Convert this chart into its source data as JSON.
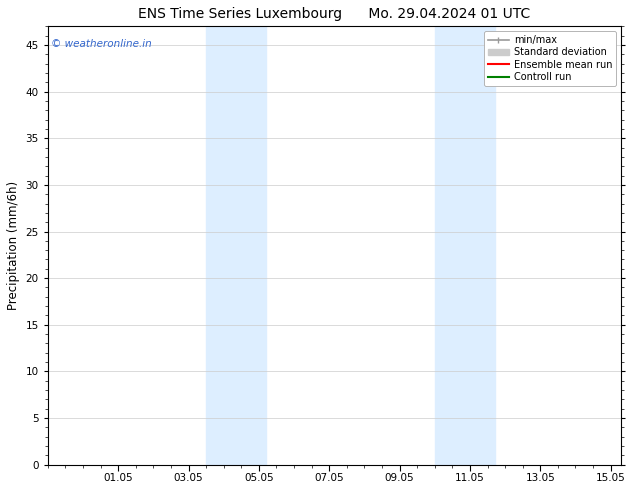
{
  "title_left": "ENS Time Series Luxembourg",
  "title_right": "Mo. 29.04.2024 01 UTC",
  "ylabel": "Precipitation (mm/6h)",
  "ylim": [
    0,
    47
  ],
  "yticks": [
    0,
    5,
    10,
    15,
    20,
    25,
    30,
    35,
    40,
    45
  ],
  "xtick_labels": [
    "01.05",
    "03.05",
    "05.05",
    "07.05",
    "09.05",
    "11.05",
    "13.05",
    "15.05"
  ],
  "xtick_positions": [
    2,
    4,
    6,
    8,
    10,
    12,
    14,
    16
  ],
  "x_min": 0,
  "x_max": 16.3,
  "shaded_bands": [
    {
      "x_start": 4.5,
      "x_end": 6.2
    },
    {
      "x_start": 11.0,
      "x_end": 12.7
    }
  ],
  "shaded_color": "#ddeeff",
  "watermark_text": "© weatheronline.in",
  "watermark_color": "#3366cc",
  "legend_labels": [
    "min/max",
    "Standard deviation",
    "Ensemble mean run",
    "Controll run"
  ],
  "legend_colors": [
    "#999999",
    "#cccccc",
    "#ff0000",
    "#008000"
  ],
  "background_color": "#ffffff",
  "plot_bg_color": "#ffffff",
  "grid_color": "#cccccc",
  "title_fontsize": 10,
  "tick_fontsize": 7.5,
  "ylabel_fontsize": 8.5,
  "watermark_fontsize": 7.5,
  "legend_fontsize": 7
}
